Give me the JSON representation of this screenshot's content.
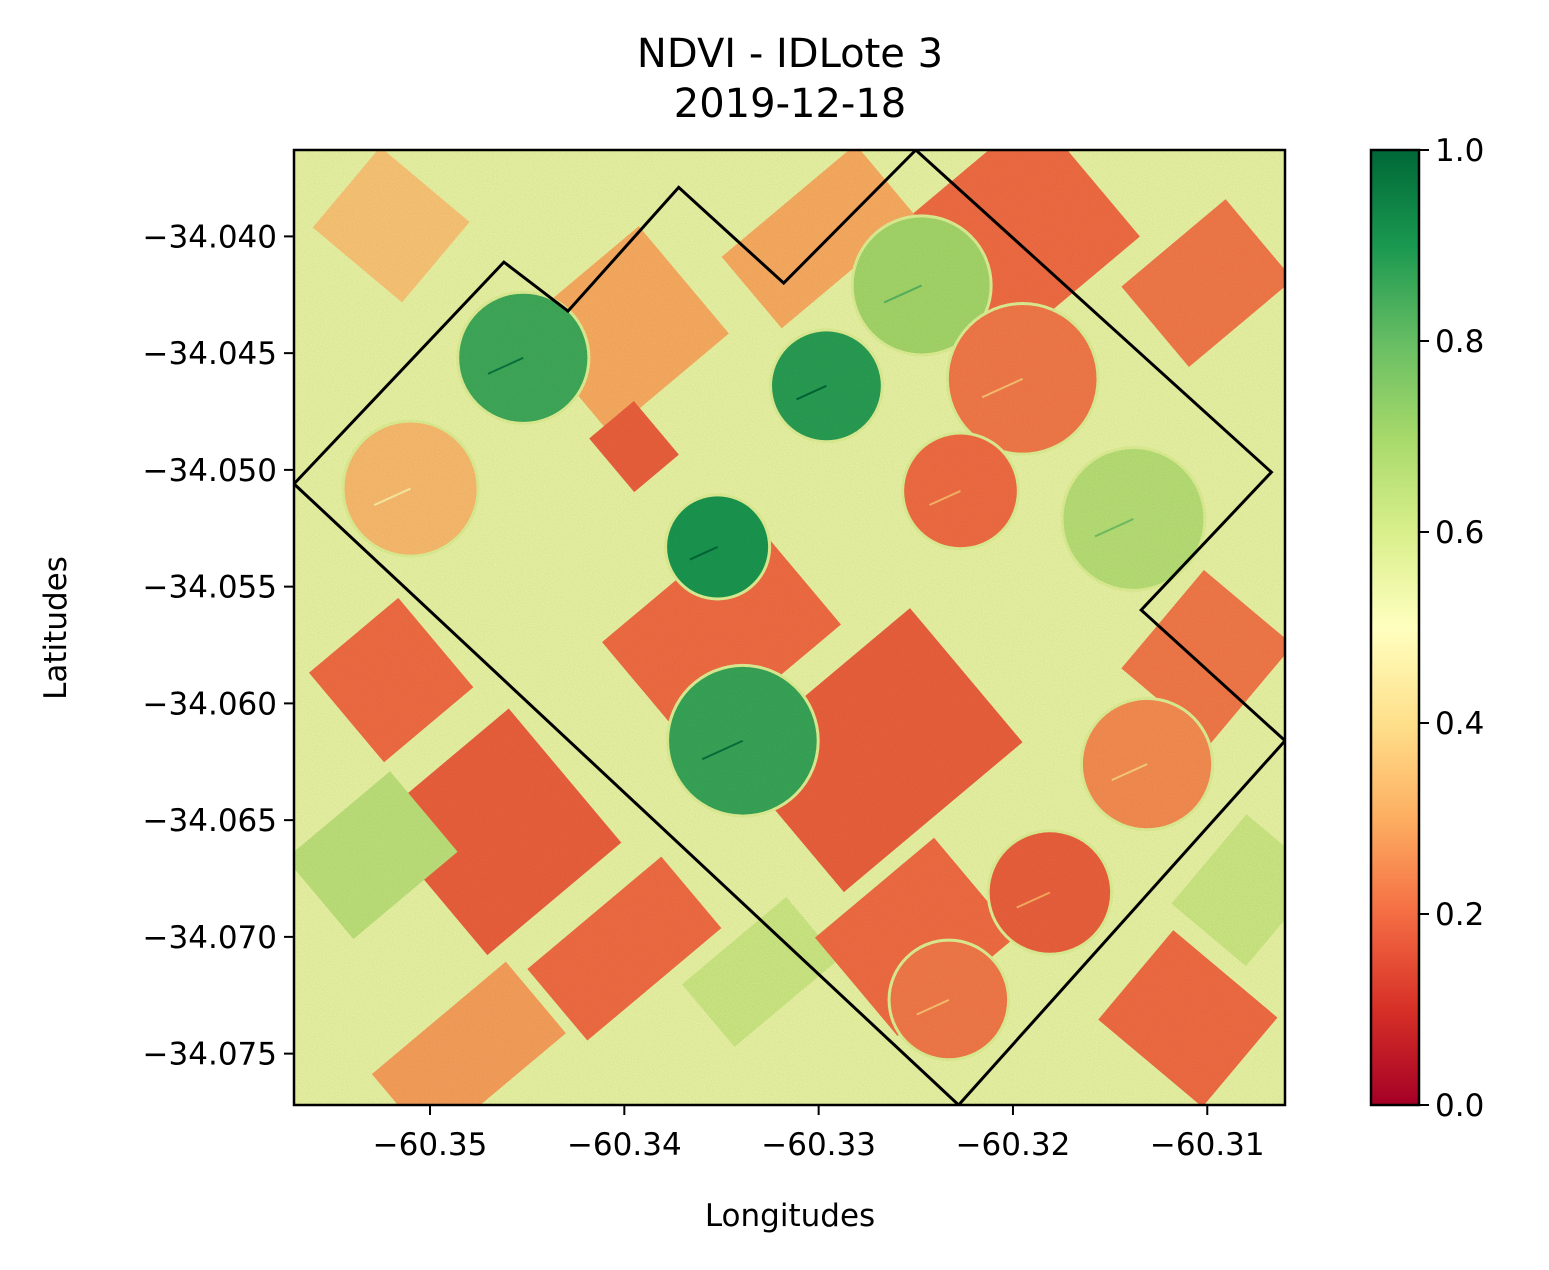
{
  "chart_data": {
    "type": "heatmap",
    "title": "NDVI - IDLote 3",
    "subtitle": "2019-12-18",
    "xlabel": "Longitudes",
    "ylabel": "Latitudes",
    "xlim": [
      -60.357,
      -60.306
    ],
    "ylim": [
      -34.0772,
      -34.0363
    ],
    "x_ticks": [
      -60.35,
      -60.34,
      -60.33,
      -60.32,
      -60.31
    ],
    "x_tick_labels": [
      "−60.35",
      "−60.34",
      "−60.33",
      "−60.32",
      "−60.31"
    ],
    "y_ticks": [
      -34.04,
      -34.045,
      -34.05,
      -34.055,
      -34.06,
      -34.065,
      -34.07,
      -34.075
    ],
    "y_tick_labels": [
      "−34.040",
      "−34.045",
      "−34.050",
      "−34.055",
      "−34.060",
      "−34.065",
      "−34.070",
      "−34.075"
    ],
    "colorbar": {
      "colormap": "RdYlGn",
      "range": [
        0.0,
        1.0
      ],
      "ticks": [
        0.0,
        0.2,
        0.4,
        0.6,
        0.8,
        1.0
      ],
      "tick_labels": [
        "0.0",
        "0.2",
        "0.4",
        "0.6",
        "0.8",
        "1.0"
      ],
      "stops": [
        "#a50026",
        "#d73027",
        "#f46d43",
        "#fdae61",
        "#fee08b",
        "#ffffbf",
        "#d9ef8b",
        "#a6d96a",
        "#66bd63",
        "#1a9850",
        "#006837"
      ]
    },
    "boundary_polygon": [
      [
        -60.357,
        -34.0506
      ],
      [
        -60.3462,
        -34.0411
      ],
      [
        -60.3429,
        -34.0432
      ],
      [
        -60.3372,
        -34.0379
      ],
      [
        -60.3318,
        -34.042
      ],
      [
        -60.325,
        -34.0363
      ],
      [
        -60.3067,
        -34.0501
      ],
      [
        -60.3134,
        -34.056
      ],
      [
        -60.306,
        -34.0616
      ],
      [
        -60.3228,
        -34.0772
      ]
    ],
    "fields": [
      {
        "kind": "rect",
        "lon": -60.352,
        "lat": -34.0395,
        "w": 0.006,
        "h": 0.0045,
        "angle": 40,
        "ndvi": 0.35
      },
      {
        "kind": "rect",
        "lon": -60.31,
        "lat": -34.042,
        "w": 0.007,
        "h": 0.0045,
        "angle": -40,
        "ndvi": 0.22
      },
      {
        "kind": "rect",
        "lon": -60.3465,
        "lat": -34.0655,
        "w": 0.009,
        "h": 0.0075,
        "angle": -40,
        "ndvi": 0.18
      },
      {
        "kind": "rect",
        "lon": -60.352,
        "lat": -34.059,
        "w": 0.006,
        "h": 0.005,
        "angle": -40,
        "ndvi": 0.2
      },
      {
        "kind": "rect",
        "lon": -60.353,
        "lat": -34.0665,
        "w": 0.007,
        "h": 0.0045,
        "angle": -40,
        "ndvi": 0.65
      },
      {
        "kind": "rect",
        "lon": -60.34,
        "lat": -34.0705,
        "w": 0.009,
        "h": 0.004,
        "angle": -40,
        "ndvi": 0.2
      },
      {
        "kind": "rect",
        "lon": -60.333,
        "lat": -34.0715,
        "w": 0.007,
        "h": 0.0035,
        "angle": -40,
        "ndvi": 0.62
      },
      {
        "kind": "rect",
        "lon": -60.348,
        "lat": -34.075,
        "w": 0.009,
        "h": 0.004,
        "angle": -40,
        "ndvi": 0.28
      },
      {
        "kind": "rect",
        "lon": -60.311,
        "lat": -34.0735,
        "w": 0.007,
        "h": 0.005,
        "angle": 40,
        "ndvi": 0.2
      },
      {
        "kind": "rect",
        "lon": -60.308,
        "lat": -34.068,
        "w": 0.005,
        "h": 0.005,
        "angle": 40,
        "ndvi": 0.62
      },
      {
        "kind": "rect",
        "lon": -60.31,
        "lat": -34.058,
        "w": 0.006,
        "h": 0.0055,
        "angle": 40,
        "ndvi": 0.22
      },
      {
        "kind": "rect",
        "lon": -60.34,
        "lat": -34.044,
        "w": 0.008,
        "h": 0.006,
        "angle": -40,
        "ndvi": 0.3
      },
      {
        "kind": "rect",
        "lon": -60.335,
        "lat": -34.057,
        "w": 0.01,
        "h": 0.006,
        "angle": -40,
        "ndvi": 0.2
      },
      {
        "kind": "rect",
        "lon": -60.327,
        "lat": -34.062,
        "w": 0.012,
        "h": 0.0075,
        "angle": -40,
        "ndvi": 0.18
      },
      {
        "kind": "rect",
        "lon": -60.325,
        "lat": -34.07,
        "w": 0.008,
        "h": 0.0055,
        "angle": -40,
        "ndvi": 0.2
      },
      {
        "kind": "rect",
        "lon": -60.32,
        "lat": -34.04,
        "w": 0.01,
        "h": 0.007,
        "angle": -40,
        "ndvi": 0.2
      },
      {
        "kind": "rect",
        "lon": -60.3395,
        "lat": -34.049,
        "w": 0.003,
        "h": 0.003,
        "angle": -40,
        "ndvi": 0.18
      },
      {
        "kind": "rect",
        "lon": -60.33,
        "lat": -34.04,
        "w": 0.009,
        "h": 0.004,
        "angle": -40,
        "ndvi": 0.3
      },
      {
        "kind": "pivot",
        "lon": -60.3452,
        "lat": -34.0452,
        "r": 0.0033,
        "ndvi": 0.85
      },
      {
        "kind": "pivot",
        "lon": -60.351,
        "lat": -34.0508,
        "r": 0.0034,
        "ndvi": 0.33
      },
      {
        "kind": "pivot",
        "lon": -60.3296,
        "lat": -34.0464,
        "r": 0.0028,
        "ndvi": 0.88
      },
      {
        "kind": "pivot",
        "lon": -60.3247,
        "lat": -34.0421,
        "r": 0.0035,
        "ndvi": 0.7
      },
      {
        "kind": "pivot",
        "lon": -60.3352,
        "lat": -34.0533,
        "r": 0.0026,
        "ndvi": 0.9
      },
      {
        "kind": "pivot",
        "lon": -60.3339,
        "lat": -34.0616,
        "r": 0.0038,
        "ndvi": 0.86
      },
      {
        "kind": "pivot",
        "lon": -60.3195,
        "lat": -34.0461,
        "r": 0.0038,
        "ndvi": 0.22
      },
      {
        "kind": "pivot",
        "lon": -60.3227,
        "lat": -34.0509,
        "r": 0.0029,
        "ndvi": 0.2
      },
      {
        "kind": "pivot",
        "lon": -60.3138,
        "lat": -34.0521,
        "r": 0.0036,
        "ndvi": 0.66
      },
      {
        "kind": "pivot",
        "lon": -60.3131,
        "lat": -34.0626,
        "r": 0.0033,
        "ndvi": 0.25
      },
      {
        "kind": "pivot",
        "lon": -60.3181,
        "lat": -34.0681,
        "r": 0.0031,
        "ndvi": 0.18
      },
      {
        "kind": "pivot",
        "lon": -60.3233,
        "lat": -34.0727,
        "r": 0.003,
        "ndvi": 0.22
      }
    ],
    "background_ndvi": 0.55,
    "legend": "none",
    "grid": false
  }
}
